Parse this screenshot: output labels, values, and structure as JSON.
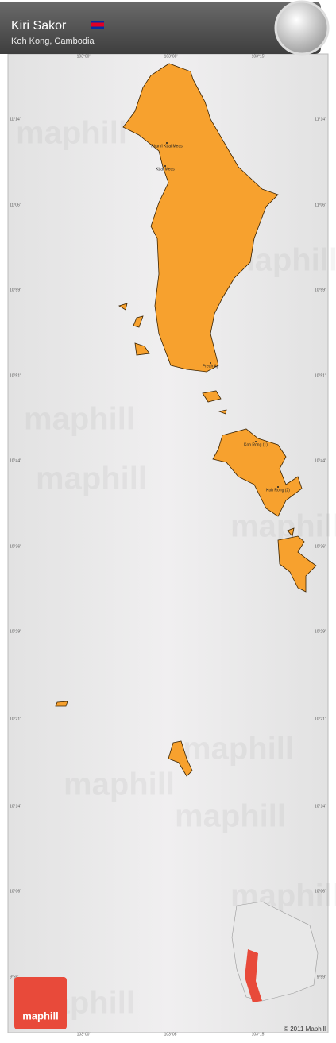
{
  "header": {
    "title": "Kiri Sakor",
    "subtitle": "Koh Kong, Cambodia"
  },
  "longitudes": [
    "103°00'",
    "103°08'",
    "103°15'"
  ],
  "latitudes": [
    "11°14'",
    "11°06'",
    "10°59'",
    "10°51'",
    "10°44'",
    "10°36'",
    "10°29'",
    "10°21'",
    "10°14'",
    "10°06'",
    "9°59'"
  ],
  "places": [
    "Phumĭ Kbal Meas",
    "Kbal Meas",
    "Preah Ay",
    "Koh Rong (1)",
    "Koh Rong (2)"
  ],
  "watermark": "maphill",
  "logo": "maphill",
  "copyright": "© 2011 Maphill"
}
